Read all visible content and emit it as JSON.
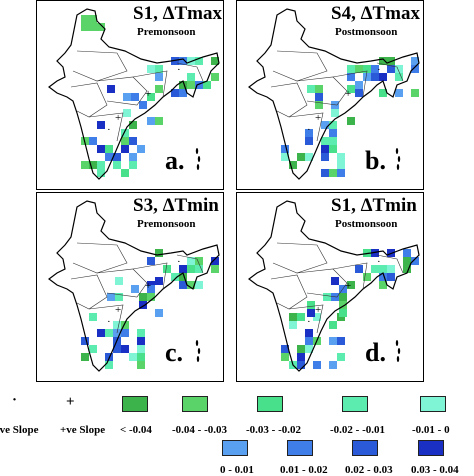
{
  "panels": [
    {
      "title": "S1, ΔTmax",
      "season": "Premonsoon",
      "label": "a."
    },
    {
      "title": "S4, ΔTmax",
      "season": "Postmonsoon",
      "label": "b."
    },
    {
      "title": "S3, ΔTmin",
      "season": "Premonsoon",
      "label": "c."
    },
    {
      "title": "S1, ΔTmin",
      "season": "Postmonsoon",
      "label": "d."
    }
  ],
  "legend": {
    "neg_symbol": "·",
    "pos_symbol": "+",
    "neg_label": "-ve Slope",
    "pos_label": "+ve Slope",
    "bins_row1": [
      {
        "label": "< -0.04",
        "color": "#3cb44b"
      },
      {
        "label": "-0.04 - -0.03",
        "color": "#5ad469"
      },
      {
        "label": "-0.03 - -0.02",
        "color": "#48e08a"
      },
      {
        "label": "-0.02 - -0.01",
        "color": "#5cecb0"
      },
      {
        "label": "-0.01 - 0",
        "color": "#7ff5d6"
      }
    ],
    "bins_row2": [
      {
        "label": "0 - 0.01",
        "color": "#5aa0f0"
      },
      {
        "label": "0.01 - 0.02",
        "color": "#3f7ee8"
      },
      {
        "label": "0.02 - 0.03",
        "color": "#2a5ad8"
      },
      {
        "label": "0.03 - 0.04",
        "color": "#1a2fc4"
      }
    ]
  }
}
